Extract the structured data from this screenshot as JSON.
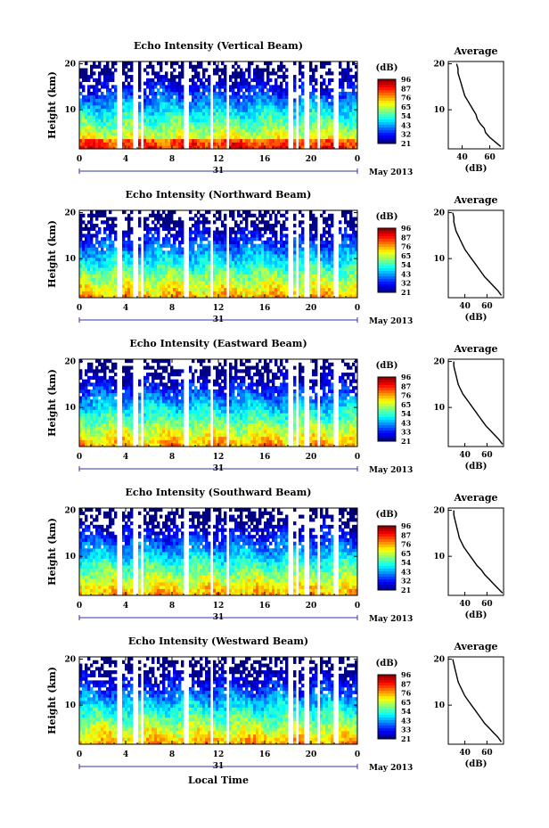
{
  "figure": {
    "x_axis_label": "Local Time",
    "date_label": "May 2013",
    "day_label": "31",
    "colorbar_unit": "(dB)"
  },
  "chart_data": [
    {
      "type": "heatmap",
      "title": "Echo Intensity (Vertical Beam)",
      "ylabel": "Height (km)",
      "x_ticks": [
        "0",
        "4",
        "8",
        "12",
        "16",
        "20",
        "0"
      ],
      "y_ticks": [
        "10",
        "20"
      ],
      "xlim": [
        0,
        24
      ],
      "ylim": [
        1.5,
        20.5
      ],
      "colorbar": {
        "unit": "(dB)",
        "ticks": [
          "96",
          "87",
          "76",
          "65",
          "54",
          "43",
          "32",
          "21"
        ],
        "range": [
          21,
          96
        ]
      },
      "data_gaps_hours": [
        [
          3.3,
          3.7
        ],
        [
          4.7,
          5.0
        ],
        [
          5.4,
          5.6
        ],
        [
          8.9,
          9.5
        ],
        [
          11.2,
          11.6
        ],
        [
          12.6,
          13.0
        ],
        [
          18.0,
          18.4
        ],
        [
          18.8,
          19.0
        ],
        [
          19.5,
          19.8
        ],
        [
          20.5,
          20.8
        ],
        [
          22.0,
          22.3
        ]
      ],
      "average_profile": {
        "title": "Average",
        "xlabel": "(dB)",
        "x_ticks": [
          "40",
          "60"
        ],
        "y_ticks": [
          "10",
          "20"
        ],
        "xlim": [
          30,
          70
        ],
        "ylim": [
          1.5,
          20.5
        ],
        "height_km": [
          2,
          3,
          4,
          5,
          6,
          7,
          8,
          9,
          10,
          11,
          12,
          13,
          14,
          15,
          16,
          17,
          18,
          19,
          20
        ],
        "values_db": [
          68,
          64,
          60,
          57,
          56,
          53,
          51,
          50,
          48,
          46,
          44,
          42,
          41,
          40,
          39,
          38,
          37,
          37,
          36
        ]
      }
    },
    {
      "type": "heatmap",
      "title": "Echo Intensity (Northward Beam)",
      "ylabel": "Height (km)",
      "x_ticks": [
        "0",
        "4",
        "8",
        "12",
        "16",
        "20",
        "0"
      ],
      "y_ticks": [
        "10",
        "20"
      ],
      "xlim": [
        0,
        24
      ],
      "ylim": [
        1.5,
        20.5
      ],
      "colorbar": {
        "unit": "(dB)",
        "ticks": [
          "96",
          "87",
          "76",
          "65",
          "54",
          "43",
          "32",
          "21"
        ],
        "range": [
          21,
          96
        ]
      },
      "data_gaps_hours": [
        [
          3.3,
          3.7
        ],
        [
          4.7,
          5.0
        ],
        [
          5.4,
          5.6
        ],
        [
          8.9,
          9.5
        ],
        [
          11.2,
          11.6
        ],
        [
          12.6,
          13.0
        ],
        [
          18.0,
          18.4
        ],
        [
          18.8,
          19.0
        ],
        [
          19.5,
          19.8
        ],
        [
          20.5,
          20.8
        ],
        [
          22.0,
          22.3
        ]
      ],
      "average_profile": {
        "title": "Average",
        "xlabel": "(dB)",
        "x_ticks": [
          "40",
          "60"
        ],
        "y_ticks": [
          "10",
          "20"
        ],
        "xlim": [
          25,
          75
        ],
        "ylim": [
          1.5,
          20.5
        ],
        "height_km": [
          2,
          3,
          4,
          5,
          6,
          7,
          8,
          9,
          10,
          11,
          12,
          13,
          14,
          15,
          16,
          17,
          18,
          19,
          20
        ],
        "values_db": [
          73,
          70,
          66,
          62,
          58,
          55,
          52,
          49,
          46,
          43,
          40,
          38,
          36,
          34,
          32,
          31,
          30,
          30,
          29
        ]
      }
    },
    {
      "type": "heatmap",
      "title": "Echo Intensity (Eastward Beam)",
      "ylabel": "Height (km)",
      "x_ticks": [
        "0",
        "4",
        "8",
        "12",
        "16",
        "20",
        "0"
      ],
      "y_ticks": [
        "10",
        "20"
      ],
      "xlim": [
        0,
        24
      ],
      "ylim": [
        1.5,
        20.5
      ],
      "colorbar": {
        "unit": "(dB)",
        "ticks": [
          "96",
          "87",
          "76",
          "65",
          "54",
          "43",
          "33",
          "21"
        ],
        "range": [
          21,
          96
        ]
      },
      "data_gaps_hours": [
        [
          3.3,
          3.7
        ],
        [
          4.7,
          5.0
        ],
        [
          5.4,
          5.6
        ],
        [
          8.9,
          9.5
        ],
        [
          11.2,
          11.6
        ],
        [
          12.6,
          13.0
        ],
        [
          18.0,
          18.4
        ],
        [
          18.8,
          19.0
        ],
        [
          19.5,
          19.8
        ],
        [
          20.5,
          20.8
        ],
        [
          22.0,
          22.3
        ]
      ],
      "average_profile": {
        "title": "Average",
        "xlabel": "(dB)",
        "x_ticks": [
          "40",
          "60"
        ],
        "y_ticks": [
          "10",
          "20"
        ],
        "xlim": [
          25,
          75
        ],
        "ylim": [
          1.5,
          20.5
        ],
        "height_km": [
          2,
          3,
          4,
          5,
          6,
          7,
          8,
          9,
          10,
          11,
          12,
          13,
          14,
          15,
          16,
          17,
          18,
          19,
          20
        ],
        "values_db": [
          74,
          71,
          67,
          63,
          59,
          56,
          53,
          50,
          47,
          44,
          41,
          38,
          36,
          34,
          33,
          32,
          31,
          30,
          30
        ]
      }
    },
    {
      "type": "heatmap",
      "title": "Echo Intensity (Southward Beam)",
      "ylabel": "Height (km)",
      "x_ticks": [
        "0",
        "4",
        "8",
        "12",
        "16",
        "20",
        "0"
      ],
      "y_ticks": [
        "10",
        "20"
      ],
      "xlim": [
        0,
        24
      ],
      "ylim": [
        1.5,
        20.5
      ],
      "colorbar": {
        "unit": "(dB)",
        "ticks": [
          "96",
          "87",
          "76",
          "65",
          "54",
          "43",
          "32",
          "21"
        ],
        "range": [
          21,
          96
        ]
      },
      "data_gaps_hours": [
        [
          3.3,
          3.7
        ],
        [
          4.7,
          5.0
        ],
        [
          5.4,
          5.6
        ],
        [
          8.9,
          9.5
        ],
        [
          11.2,
          11.6
        ],
        [
          12.6,
          13.0
        ],
        [
          18.0,
          18.4
        ],
        [
          18.8,
          19.0
        ],
        [
          19.5,
          19.8
        ],
        [
          20.5,
          20.8
        ],
        [
          22.0,
          22.3
        ]
      ],
      "average_profile": {
        "title": "Average",
        "xlabel": "(dB)",
        "x_ticks": [
          "40",
          "60"
        ],
        "y_ticks": [
          "10",
          "20"
        ],
        "xlim": [
          25,
          75
        ],
        "ylim": [
          1.5,
          20.5
        ],
        "height_km": [
          2,
          3,
          4,
          5,
          6,
          7,
          8,
          9,
          10,
          11,
          12,
          13,
          14,
          15,
          16,
          17,
          18,
          19,
          20
        ],
        "values_db": [
          74,
          70,
          66,
          62,
          58,
          55,
          51,
          48,
          45,
          42,
          39,
          37,
          35,
          34,
          33,
          32,
          31,
          30,
          30
        ]
      }
    },
    {
      "type": "heatmap",
      "title": "Echo Intensity (Westward Beam)",
      "ylabel": "Height (km)",
      "x_ticks": [
        "0",
        "4",
        "8",
        "12",
        "16",
        "20",
        "0"
      ],
      "y_ticks": [
        "10",
        "20"
      ],
      "xlim": [
        0,
        24
      ],
      "ylim": [
        1.5,
        20.5
      ],
      "colorbar": {
        "unit": "(dB)",
        "ticks": [
          "96",
          "87",
          "76",
          "65",
          "54",
          "43",
          "33",
          "21"
        ],
        "range": [
          21,
          96
        ]
      },
      "data_gaps_hours": [
        [
          3.3,
          3.7
        ],
        [
          4.7,
          5.0
        ],
        [
          5.4,
          5.6
        ],
        [
          8.9,
          9.5
        ],
        [
          11.2,
          11.6
        ],
        [
          12.6,
          13.0
        ],
        [
          18.0,
          18.4
        ],
        [
          18.8,
          19.0
        ],
        [
          19.5,
          19.8
        ],
        [
          20.5,
          20.8
        ],
        [
          22.0,
          22.3
        ]
      ],
      "average_profile": {
        "title": "Average",
        "xlabel": "(dB)",
        "x_ticks": [
          "40",
          "60"
        ],
        "y_ticks": [
          "10",
          "20"
        ],
        "xlim": [
          25,
          75
        ],
        "ylim": [
          1.5,
          20.5
        ],
        "height_km": [
          2,
          3,
          4,
          5,
          6,
          7,
          8,
          9,
          10,
          11,
          12,
          13,
          14,
          15,
          16,
          17,
          18,
          19,
          20
        ],
        "values_db": [
          73,
          70,
          66,
          62,
          58,
          55,
          52,
          49,
          46,
          43,
          40,
          38,
          36,
          34,
          33,
          32,
          31,
          30,
          29
        ]
      }
    }
  ]
}
